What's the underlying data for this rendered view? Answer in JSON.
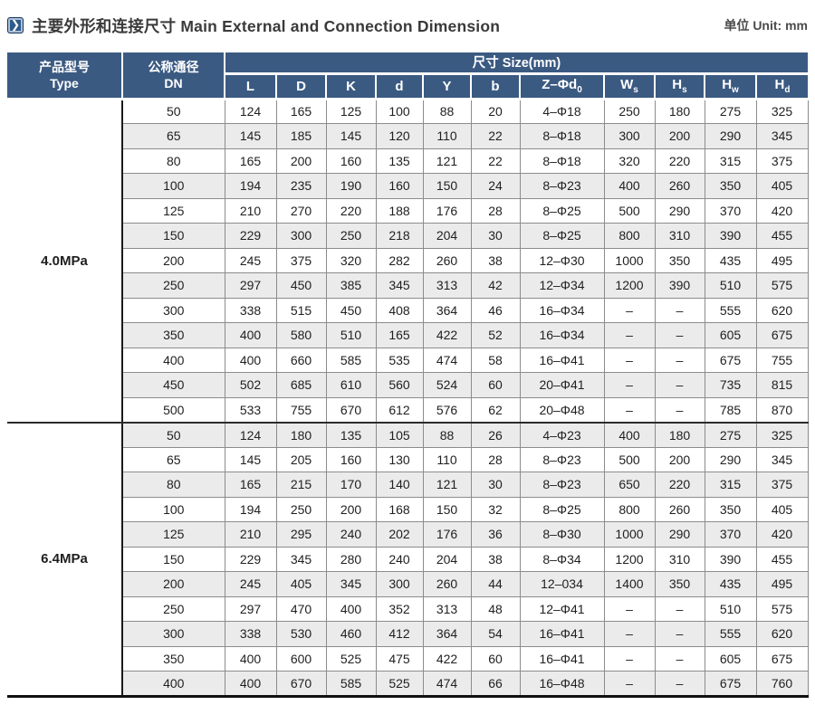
{
  "header": {
    "title": "主要外形和连接尺寸 Main External and Connection Dimension",
    "unit": "单位 Unit: mm",
    "icon_glyph": "❯"
  },
  "table": {
    "type_header": {
      "zh": "产品型号",
      "en": "Type"
    },
    "dn_header": {
      "zh": "公称通径",
      "en": "DN"
    },
    "size_group_label": "尺寸 Size(mm)",
    "size_columns": [
      {
        "base": "L",
        "sub": ""
      },
      {
        "base": "D",
        "sub": ""
      },
      {
        "base": "K",
        "sub": ""
      },
      {
        "base": "d",
        "sub": ""
      },
      {
        "base": "Y",
        "sub": ""
      },
      {
        "base": "b",
        "sub": ""
      },
      {
        "base": "Z–Φd",
        "sub": "0"
      },
      {
        "base": "W",
        "sub": "s"
      },
      {
        "base": "H",
        "sub": "s"
      },
      {
        "base": "H",
        "sub": "w"
      },
      {
        "base": "H",
        "sub": "d"
      }
    ],
    "groups": [
      {
        "label": "4.0MPa",
        "rows": [
          [
            "50",
            "124",
            "165",
            "125",
            "100",
            "88",
            "20",
            "4–Φ18",
            "250",
            "180",
            "275",
            "325"
          ],
          [
            "65",
            "145",
            "185",
            "145",
            "120",
            "110",
            "22",
            "8–Φ18",
            "300",
            "200",
            "290",
            "345"
          ],
          [
            "80",
            "165",
            "200",
            "160",
            "135",
            "121",
            "22",
            "8–Φ18",
            "320",
            "220",
            "315",
            "375"
          ],
          [
            "100",
            "194",
            "235",
            "190",
            "160",
            "150",
            "24",
            "8–Φ23",
            "400",
            "260",
            "350",
            "405"
          ],
          [
            "125",
            "210",
            "270",
            "220",
            "188",
            "176",
            "28",
            "8–Φ25",
            "500",
            "290",
            "370",
            "420"
          ],
          [
            "150",
            "229",
            "300",
            "250",
            "218",
            "204",
            "30",
            "8–Φ25",
            "800",
            "310",
            "390",
            "455"
          ],
          [
            "200",
            "245",
            "375",
            "320",
            "282",
            "260",
            "38",
            "12–Φ30",
            "1000",
            "350",
            "435",
            "495"
          ],
          [
            "250",
            "297",
            "450",
            "385",
            "345",
            "313",
            "42",
            "12–Φ34",
            "1200",
            "390",
            "510",
            "575"
          ],
          [
            "300",
            "338",
            "515",
            "450",
            "408",
            "364",
            "46",
            "16–Φ34",
            "–",
            "–",
            "555",
            "620"
          ],
          [
            "350",
            "400",
            "580",
            "510",
            "165",
            "422",
            "52",
            "16–Φ34",
            "–",
            "–",
            "605",
            "675"
          ],
          [
            "400",
            "400",
            "660",
            "585",
            "535",
            "474",
            "58",
            "16–Φ41",
            "–",
            "–",
            "675",
            "755"
          ],
          [
            "450",
            "502",
            "685",
            "610",
            "560",
            "524",
            "60",
            "20–Φ41",
            "–",
            "–",
            "735",
            "815"
          ],
          [
            "500",
            "533",
            "755",
            "670",
            "612",
            "576",
            "62",
            "20–Φ48",
            "–",
            "–",
            "785",
            "870"
          ]
        ]
      },
      {
        "label": "6.4MPa",
        "rows": [
          [
            "50",
            "124",
            "180",
            "135",
            "105",
            "88",
            "26",
            "4–Φ23",
            "400",
            "180",
            "275",
            "325"
          ],
          [
            "65",
            "145",
            "205",
            "160",
            "130",
            "110",
            "28",
            "8–Φ23",
            "500",
            "200",
            "290",
            "345"
          ],
          [
            "80",
            "165",
            "215",
            "170",
            "140",
            "121",
            "30",
            "8–Φ23",
            "650",
            "220",
            "315",
            "375"
          ],
          [
            "100",
            "194",
            "250",
            "200",
            "168",
            "150",
            "32",
            "8–Φ25",
            "800",
            "260",
            "350",
            "405"
          ],
          [
            "125",
            "210",
            "295",
            "240",
            "202",
            "176",
            "36",
            "8–Φ30",
            "1000",
            "290",
            "370",
            "420"
          ],
          [
            "150",
            "229",
            "345",
            "280",
            "240",
            "204",
            "38",
            "8–Φ34",
            "1200",
            "310",
            "390",
            "455"
          ],
          [
            "200",
            "245",
            "405",
            "345",
            "300",
            "260",
            "44",
            "12–034",
            "1400",
            "350",
            "435",
            "495"
          ],
          [
            "250",
            "297",
            "470",
            "400",
            "352",
            "313",
            "48",
            "12–Φ41",
            "–",
            "–",
            "510",
            "575"
          ],
          [
            "300",
            "338",
            "530",
            "460",
            "412",
            "364",
            "54",
            "16–Φ41",
            "–",
            "–",
            "555",
            "620"
          ],
          [
            "350",
            "400",
            "600",
            "525",
            "475",
            "422",
            "60",
            "16–Φ41",
            "–",
            "–",
            "605",
            "675"
          ],
          [
            "400",
            "400",
            "670",
            "585",
            "525",
            "474",
            "66",
            "16–Φ48",
            "–",
            "–",
            "675",
            "760"
          ]
        ]
      }
    ]
  },
  "colors": {
    "header_bg": "#3b5a82",
    "stripe": "#ebebeb",
    "grid_line": "#8c8c8c",
    "dark_line": "#1a1a1a",
    "icon_bg": "#2f5b8c"
  }
}
